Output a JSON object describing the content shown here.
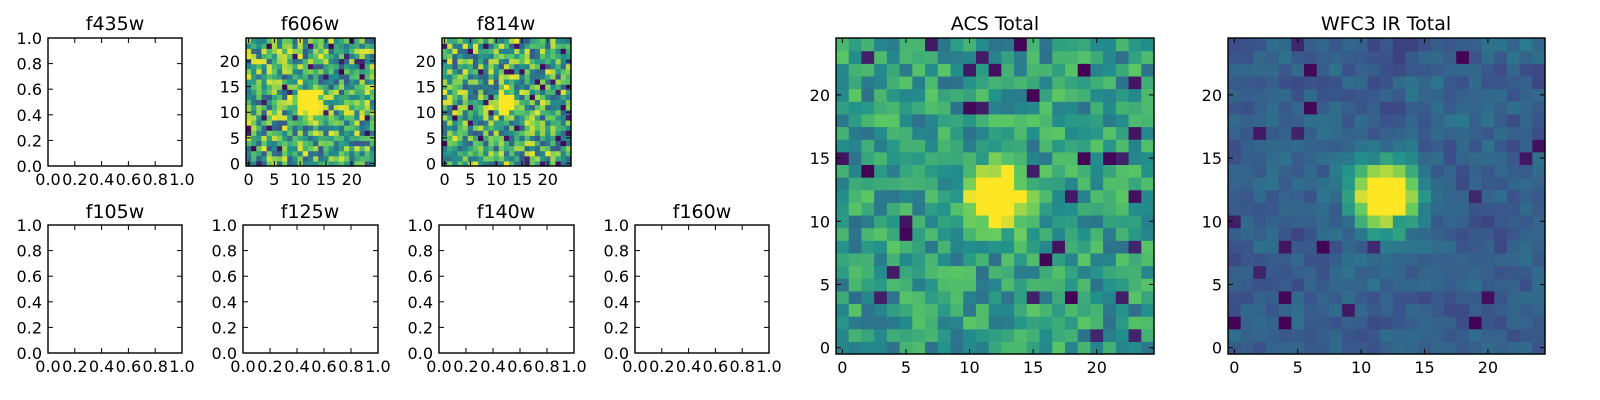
{
  "chart_data": [
    {
      "type": "heatmap",
      "title": "f435w",
      "empty": true,
      "xlim": [
        0,
        1
      ],
      "ylim": [
        0,
        1
      ],
      "xticks": [
        "0.0",
        "0.2",
        "0.4",
        "0.6",
        "0.8",
        "1.0"
      ],
      "yticks": [
        "0.0",
        "0.2",
        "0.4",
        "0.6",
        "0.8",
        "1.0"
      ]
    },
    {
      "type": "heatmap",
      "title": "f606w",
      "empty": false,
      "size": 25,
      "colormap": "viridis",
      "pattern": "noisy",
      "seed": 11,
      "peak": [
        12,
        12
      ],
      "peak_sigma": 1.6,
      "xticks": [
        "0",
        "5",
        "10",
        "15",
        "20"
      ],
      "yticks": [
        "0",
        "5",
        "10",
        "15",
        "20"
      ]
    },
    {
      "type": "heatmap",
      "title": "f814w",
      "empty": false,
      "size": 25,
      "colormap": "viridis",
      "pattern": "noisy",
      "seed": 27,
      "peak": [
        12,
        12
      ],
      "peak_sigma": 1.3,
      "xticks": [
        "0",
        "5",
        "10",
        "15",
        "20"
      ],
      "yticks": [
        "0",
        "5",
        "10",
        "15",
        "20"
      ]
    },
    {
      "type": "heatmap",
      "title": "f105w",
      "empty": true,
      "xlim": [
        0,
        1
      ],
      "ylim": [
        0,
        1
      ],
      "xticks": [
        "0.0",
        "0.2",
        "0.4",
        "0.6",
        "0.8",
        "1.0"
      ],
      "yticks": [
        "0.0",
        "0.2",
        "0.4",
        "0.6",
        "0.8",
        "1.0"
      ]
    },
    {
      "type": "heatmap",
      "title": "f125w",
      "empty": true,
      "xlim": [
        0,
        1
      ],
      "ylim": [
        0,
        1
      ],
      "xticks": [
        "0.0",
        "0.2",
        "0.4",
        "0.6",
        "0.8",
        "1.0"
      ],
      "yticks": [
        "0.0",
        "0.2",
        "0.4",
        "0.6",
        "0.8",
        "1.0"
      ]
    },
    {
      "type": "heatmap",
      "title": "f140w",
      "empty": true,
      "xlim": [
        0,
        1
      ],
      "ylim": [
        0,
        1
      ],
      "xticks": [
        "0.0",
        "0.2",
        "0.4",
        "0.6",
        "0.8",
        "1.0"
      ],
      "yticks": [
        "0.0",
        "0.2",
        "0.4",
        "0.6",
        "0.8",
        "1.0"
      ]
    },
    {
      "type": "heatmap",
      "title": "f160w",
      "empty": true,
      "xlim": [
        0,
        1
      ],
      "ylim": [
        0,
        1
      ],
      "xticks": [
        "0.0",
        "0.2",
        "0.4",
        "0.6",
        "0.8",
        "1.0"
      ],
      "yticks": [
        "0.0",
        "0.2",
        "0.4",
        "0.6",
        "0.8",
        "1.0"
      ]
    },
    {
      "type": "heatmap",
      "title": "ACS Total",
      "empty": false,
      "size": 25,
      "colormap": "viridis",
      "pattern": "mid",
      "seed": 43,
      "peak": [
        12,
        12
      ],
      "peak_sigma": 1.5,
      "xticks": [
        "0",
        "5",
        "10",
        "15",
        "20"
      ],
      "yticks": [
        "0",
        "5",
        "10",
        "15",
        "20"
      ]
    },
    {
      "type": "heatmap",
      "title": "WFC3 IR Total",
      "empty": false,
      "size": 25,
      "colormap": "viridis",
      "pattern": "smooth",
      "seed": 71,
      "peak": [
        12,
        12
      ],
      "peak_sigma": 1.7,
      "xticks": [
        "0",
        "5",
        "10",
        "15",
        "20"
      ],
      "yticks": [
        "0",
        "5",
        "10",
        "15",
        "20"
      ]
    }
  ],
  "colors": {
    "viridis": [
      "#440154",
      "#3b528b",
      "#21918c",
      "#5ec962",
      "#fde725"
    ]
  }
}
